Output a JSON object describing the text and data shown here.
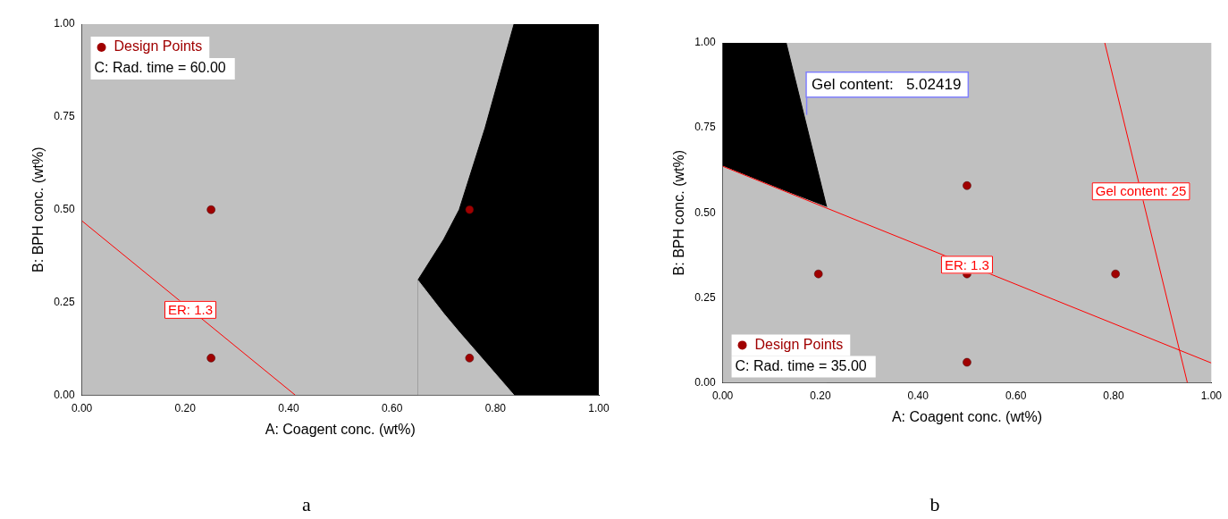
{
  "chart_data": [
    {
      "type": "scatter",
      "title": "a",
      "xlabel": "A: Coagent conc. (wt%)",
      "ylabel": "B: BPH conc. (wt%)",
      "xlim": [
        0,
        1
      ],
      "ylim": [
        0,
        1
      ],
      "xticks": [
        {
          "value": 0,
          "label": "0.00"
        },
        {
          "value": 0.2,
          "label": "0.20"
        },
        {
          "value": 0.4,
          "label": "0.40"
        },
        {
          "value": 0.6,
          "label": "0.60"
        },
        {
          "value": 0.8,
          "label": "0.80"
        },
        {
          "value": 1,
          "label": "1.00"
        }
      ],
      "yticks": [
        {
          "value": 0,
          "label": "0.00"
        },
        {
          "value": 0.25,
          "label": "0.25"
        },
        {
          "value": 0.5,
          "label": "0.50"
        },
        {
          "value": 0.75,
          "label": "0.75"
        },
        {
          "value": 1,
          "label": "1.00"
        }
      ],
      "grid": false,
      "legend": "top left",
      "series": [
        {
          "type": "area",
          "color": "#000000",
          "x": [
            0.65,
            0.7,
            0.73,
            0.78,
            0.836,
            1
          ],
          "values": [
            0.31,
            0.42,
            0.5,
            0.72,
            1,
            1
          ]
        },
        {
          "type": "area",
          "color": "#c0c0c0",
          "x": [
            0.65,
            0.7,
            0.73,
            0.78,
            0.836
          ],
          "values": [
            0.31,
            0.22,
            0.17,
            0.09,
            0
          ]
        },
        {
          "type": "line",
          "color": "#ff0000",
          "x": [
            0,
            0.413
          ],
          "values": [
            0.47,
            0
          ]
        },
        {
          "type": "scatter",
          "name": "Design Points",
          "color": "#a00000",
          "marker": "circle",
          "x": [
            0.25,
            0.75,
            0.25,
            0.75
          ],
          "values": [
            0.5,
            0.5,
            0.1,
            0.1
          ]
        }
      ],
      "annotations": [
        "C: Rad. time = 60.00",
        {
          "text": "ER: 1.3",
          "x": 0.21,
          "y": 0.23
        }
      ]
    },
    {
      "type": "scatter",
      "title": "b",
      "xlabel": "A: Coagent conc. (wt%)",
      "ylabel": "B: BPH conc. (wt%)",
      "xlim": [
        0,
        1
      ],
      "ylim": [
        0,
        1
      ],
      "xticks": [
        {
          "value": 0,
          "label": "0.00"
        },
        {
          "value": 0.2,
          "label": "0.20"
        },
        {
          "value": 0.4,
          "label": "0.40"
        },
        {
          "value": 0.6,
          "label": "0.60"
        },
        {
          "value": 0.8,
          "label": "0.80"
        },
        {
          "value": 1,
          "label": "1.00"
        }
      ],
      "yticks": [
        {
          "value": 0,
          "label": "0.00"
        },
        {
          "value": 0.25,
          "label": "0.25"
        },
        {
          "value": 0.5,
          "label": "0.50"
        },
        {
          "value": 0.75,
          "label": "0.75"
        },
        {
          "value": 1,
          "label": "1.00"
        }
      ],
      "grid": false,
      "legend": "bottom left",
      "series": [
        {
          "type": "area",
          "color": "#000000",
          "x": [
            0,
            0.13,
            0.213
          ],
          "values": [
            1,
            1,
            0.516
          ]
        },
        {
          "type": "area",
          "color": "#c0c0c0",
          "x": [
            0,
            0.13,
            0.213
          ],
          "values": [
            0.637,
            0.562,
            0.516
          ]
        },
        {
          "type": "line",
          "color": "#ff0000",
          "x": [
            0,
            1
          ],
          "values": [
            0.637,
            0.058
          ]
        },
        {
          "type": "line",
          "color": "#ff0000",
          "x": [
            0.782,
            0.951
          ],
          "values": [
            1,
            0
          ]
        },
        {
          "type": "scatter",
          "name": "Design Points",
          "color": "#a00000",
          "marker": "circle",
          "x": [
            0.5,
            0.196,
            0.5,
            0.804,
            0.5
          ],
          "values": [
            0.58,
            0.32,
            0.32,
            0.32,
            0.06
          ]
        }
      ],
      "annotations": [
        "C: Rad. time = 35.00",
        {
          "text": "Gel content:   5.02419",
          "x": 0.171,
          "y": 0.788
        },
        {
          "text": "ER: 1.3",
          "x": 0.5,
          "y": 0.347
        },
        {
          "text": "Gel content: 25",
          "x": 0.856,
          "y": 0.563
        }
      ]
    }
  ]
}
